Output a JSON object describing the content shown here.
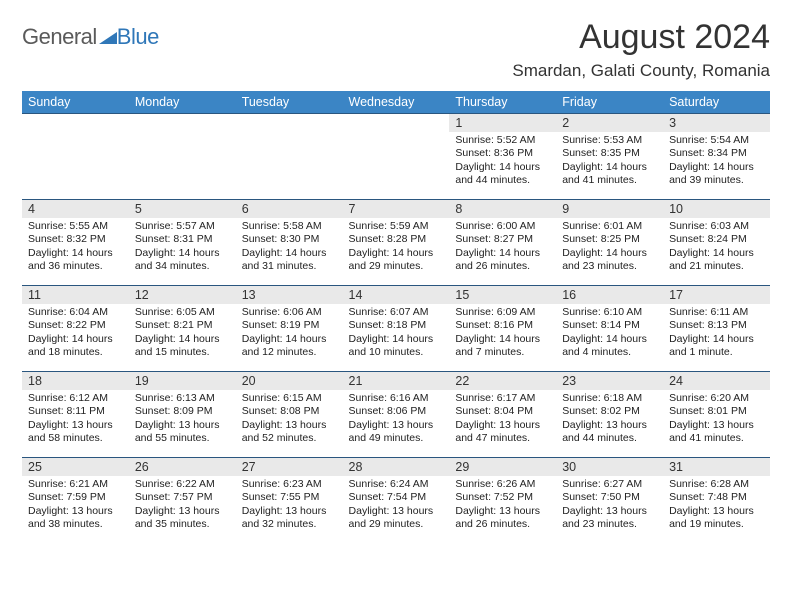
{
  "logo": {
    "text1": "General",
    "text2": "Blue"
  },
  "title": "August 2024",
  "subtitle": "Smardan, Galati County, Romania",
  "colors": {
    "header_bg": "#3b85c5",
    "row_border": "#2a567f",
    "daynum_bg": "#e9e9e9",
    "logo_blue": "#2f77b8"
  },
  "weekdays": [
    "Sunday",
    "Monday",
    "Tuesday",
    "Wednesday",
    "Thursday",
    "Friday",
    "Saturday"
  ],
  "days": {
    "1": {
      "sunrise": "5:52 AM",
      "sunset": "8:36 PM",
      "daylight": "14 hours and 44 minutes."
    },
    "2": {
      "sunrise": "5:53 AM",
      "sunset": "8:35 PM",
      "daylight": "14 hours and 41 minutes."
    },
    "3": {
      "sunrise": "5:54 AM",
      "sunset": "8:34 PM",
      "daylight": "14 hours and 39 minutes."
    },
    "4": {
      "sunrise": "5:55 AM",
      "sunset": "8:32 PM",
      "daylight": "14 hours and 36 minutes."
    },
    "5": {
      "sunrise": "5:57 AM",
      "sunset": "8:31 PM",
      "daylight": "14 hours and 34 minutes."
    },
    "6": {
      "sunrise": "5:58 AM",
      "sunset": "8:30 PM",
      "daylight": "14 hours and 31 minutes."
    },
    "7": {
      "sunrise": "5:59 AM",
      "sunset": "8:28 PM",
      "daylight": "14 hours and 29 minutes."
    },
    "8": {
      "sunrise": "6:00 AM",
      "sunset": "8:27 PM",
      "daylight": "14 hours and 26 minutes."
    },
    "9": {
      "sunrise": "6:01 AM",
      "sunset": "8:25 PM",
      "daylight": "14 hours and 23 minutes."
    },
    "10": {
      "sunrise": "6:03 AM",
      "sunset": "8:24 PM",
      "daylight": "14 hours and 21 minutes."
    },
    "11": {
      "sunrise": "6:04 AM",
      "sunset": "8:22 PM",
      "daylight": "14 hours and 18 minutes."
    },
    "12": {
      "sunrise": "6:05 AM",
      "sunset": "8:21 PM",
      "daylight": "14 hours and 15 minutes."
    },
    "13": {
      "sunrise": "6:06 AM",
      "sunset": "8:19 PM",
      "daylight": "14 hours and 12 minutes."
    },
    "14": {
      "sunrise": "6:07 AM",
      "sunset": "8:18 PM",
      "daylight": "14 hours and 10 minutes."
    },
    "15": {
      "sunrise": "6:09 AM",
      "sunset": "8:16 PM",
      "daylight": "14 hours and 7 minutes."
    },
    "16": {
      "sunrise": "6:10 AM",
      "sunset": "8:14 PM",
      "daylight": "14 hours and 4 minutes."
    },
    "17": {
      "sunrise": "6:11 AM",
      "sunset": "8:13 PM",
      "daylight": "14 hours and 1 minute."
    },
    "18": {
      "sunrise": "6:12 AM",
      "sunset": "8:11 PM",
      "daylight": "13 hours and 58 minutes."
    },
    "19": {
      "sunrise": "6:13 AM",
      "sunset": "8:09 PM",
      "daylight": "13 hours and 55 minutes."
    },
    "20": {
      "sunrise": "6:15 AM",
      "sunset": "8:08 PM",
      "daylight": "13 hours and 52 minutes."
    },
    "21": {
      "sunrise": "6:16 AM",
      "sunset": "8:06 PM",
      "daylight": "13 hours and 49 minutes."
    },
    "22": {
      "sunrise": "6:17 AM",
      "sunset": "8:04 PM",
      "daylight": "13 hours and 47 minutes."
    },
    "23": {
      "sunrise": "6:18 AM",
      "sunset": "8:02 PM",
      "daylight": "13 hours and 44 minutes."
    },
    "24": {
      "sunrise": "6:20 AM",
      "sunset": "8:01 PM",
      "daylight": "13 hours and 41 minutes."
    },
    "25": {
      "sunrise": "6:21 AM",
      "sunset": "7:59 PM",
      "daylight": "13 hours and 38 minutes."
    },
    "26": {
      "sunrise": "6:22 AM",
      "sunset": "7:57 PM",
      "daylight": "13 hours and 35 minutes."
    },
    "27": {
      "sunrise": "6:23 AM",
      "sunset": "7:55 PM",
      "daylight": "13 hours and 32 minutes."
    },
    "28": {
      "sunrise": "6:24 AM",
      "sunset": "7:54 PM",
      "daylight": "13 hours and 29 minutes."
    },
    "29": {
      "sunrise": "6:26 AM",
      "sunset": "7:52 PM",
      "daylight": "13 hours and 26 minutes."
    },
    "30": {
      "sunrise": "6:27 AM",
      "sunset": "7:50 PM",
      "daylight": "13 hours and 23 minutes."
    },
    "31": {
      "sunrise": "6:28 AM",
      "sunset": "7:48 PM",
      "daylight": "13 hours and 19 minutes."
    }
  },
  "labels": {
    "sunrise": "Sunrise: ",
    "sunset": "Sunset: ",
    "daylight": "Daylight: "
  },
  "layout": {
    "first_weekday_index": 4,
    "num_days": 31,
    "font_family": "Arial",
    "title_fontsize": 34,
    "subtitle_fontsize": 17,
    "header_fontsize": 12.5,
    "cell_fontsize": 10.5
  }
}
